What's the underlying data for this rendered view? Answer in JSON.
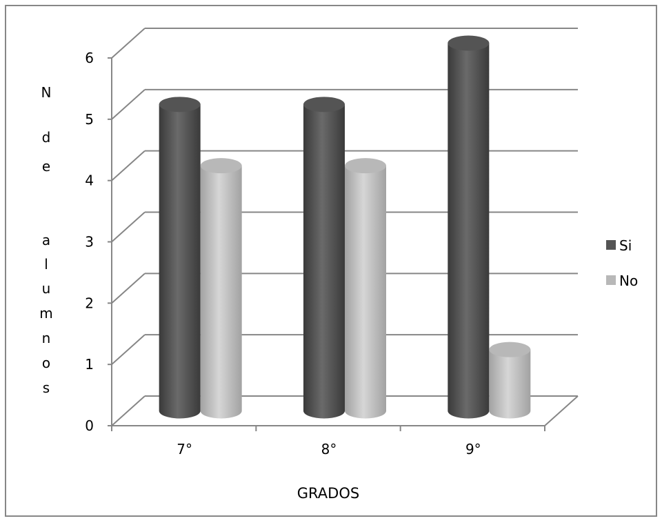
{
  "chart_data": {
    "type": "bar",
    "title": "",
    "categories": [
      "7°",
      "8°",
      "9°"
    ],
    "series": [
      {
        "name": "Si",
        "values": [
          5,
          5,
          6
        ],
        "color": "#545454"
      },
      {
        "name": "No",
        "values": [
          4,
          4,
          1
        ],
        "color": "#b8b8b8"
      }
    ],
    "xlabel": "GRADOS",
    "ylabel_letters": [
      "N",
      "d",
      "e",
      "a",
      "l",
      "u",
      "m",
      "n",
      "o",
      "s"
    ],
    "ylim": [
      0,
      6
    ],
    "yticks": [
      0,
      1,
      2,
      3,
      4,
      5,
      6
    ],
    "grid": true,
    "legend": "right",
    "style": "3d-cylinder"
  }
}
